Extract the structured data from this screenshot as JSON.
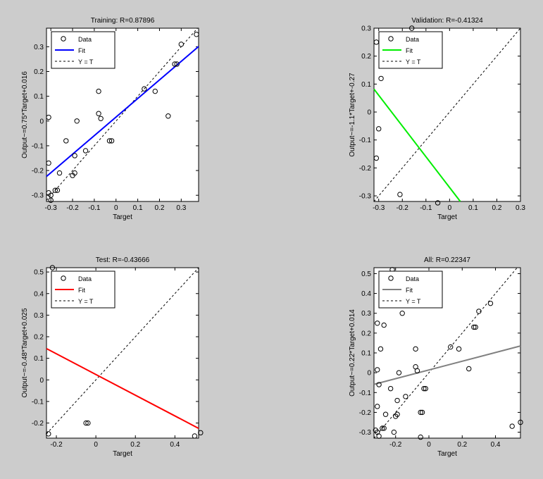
{
  "chart_data": [
    {
      "type": "scatter",
      "title": "Training: R=0.87896",
      "xlabel": "Target",
      "ylabel": "Output~=0.75*Target+0.016",
      "xlim": [
        -0.32,
        0.38
      ],
      "ylim": [
        -0.325,
        0.375
      ],
      "xticks": [
        -0.3,
        -0.2,
        -0.1,
        0,
        0.1,
        0.2,
        0.3
      ],
      "xtick_labels": [
        "-0.3",
        "-0.2",
        "-0.1",
        "0",
        "0.1",
        "0.2",
        "0.3"
      ],
      "yticks": [
        -0.3,
        -0.2,
        -0.1,
        0,
        0.1,
        0.2,
        0.3
      ],
      "ytick_labels": [
        "-0.3",
        "-0.2",
        "-0.1",
        "0",
        "0.1",
        "0.2",
        "0.3"
      ],
      "fit": {
        "slope": 0.75,
        "intercept": 0.016,
        "color": "#0000ff"
      },
      "legend": {
        "position": "top-left",
        "entries": [
          "Data",
          "Fit",
          "Y = T"
        ]
      },
      "points": [
        [
          -0.31,
          -0.29
        ],
        [
          -0.3,
          -0.3
        ],
        [
          -0.3,
          -0.32
        ],
        [
          -0.28,
          -0.28
        ],
        [
          -0.27,
          -0.28
        ],
        [
          -0.26,
          -0.21
        ],
        [
          -0.31,
          -0.17
        ],
        [
          -0.31,
          0.015
        ],
        [
          -0.23,
          -0.08
        ],
        [
          -0.2,
          -0.22
        ],
        [
          -0.19,
          -0.21
        ],
        [
          -0.19,
          -0.14
        ],
        [
          -0.18,
          0.0
        ],
        [
          -0.14,
          -0.12
        ],
        [
          -0.08,
          0.12
        ],
        [
          -0.08,
          0.03
        ],
        [
          -0.07,
          0.01
        ],
        [
          -0.03,
          -0.08
        ],
        [
          -0.02,
          -0.08
        ],
        [
          0.13,
          0.13
        ],
        [
          0.18,
          0.12
        ],
        [
          0.24,
          0.02
        ],
        [
          0.27,
          0.23
        ],
        [
          0.28,
          0.23
        ],
        [
          0.3,
          0.31
        ],
        [
          0.37,
          0.35
        ]
      ]
    },
    {
      "type": "scatter",
      "title": "Validation: R=-0.41324",
      "xlabel": "Target",
      "ylabel": "Output~=-1.1*Target+-0.27",
      "xlim": [
        -0.32,
        0.3
      ],
      "ylim": [
        -0.32,
        0.3
      ],
      "xticks": [
        -0.3,
        -0.2,
        -0.1,
        0,
        0.1,
        0.2,
        0.3
      ],
      "xtick_labels": [
        "-0.3",
        "-0.2",
        "-0.1",
        "0",
        "0.1",
        "0.2",
        "0.3"
      ],
      "yticks": [
        -0.3,
        -0.2,
        -0.1,
        0,
        0.1,
        0.2,
        0.3
      ],
      "ytick_labels": [
        "-0.3",
        "-0.2",
        "-0.1",
        "0",
        "0.1",
        "0.2",
        "0.3"
      ],
      "fit": {
        "slope": -1.1,
        "intercept": -0.27,
        "color": "#00ee00"
      },
      "legend": {
        "position": "top-left",
        "entries": [
          "Data",
          "Fit",
          "Y = T"
        ]
      },
      "points": [
        [
          -0.31,
          0.25
        ],
        [
          -0.3,
          -0.06
        ],
        [
          -0.31,
          -0.165
        ],
        [
          -0.29,
          0.12
        ],
        [
          -0.21,
          -0.295
        ],
        [
          -0.16,
          0.3
        ],
        [
          -0.05,
          -0.325
        ]
      ]
    },
    {
      "type": "scatter",
      "title": "Test: R=-0.43666",
      "xlabel": "Target",
      "ylabel": "Output~=-0.48*Target+0.025",
      "xlim": [
        -0.25,
        0.52
      ],
      "ylim": [
        -0.27,
        0.52
      ],
      "xticks": [
        -0.2,
        0,
        0.2,
        0.4
      ],
      "xtick_labels": [
        "-0.2",
        "0",
        "0.2",
        "0.4"
      ],
      "yticks": [
        -0.2,
        -0.1,
        0,
        0.1,
        0.2,
        0.3,
        0.4,
        0.5
      ],
      "ytick_labels": [
        "-0.2",
        "-0.1",
        "0",
        "0.1",
        "0.2",
        "0.3",
        "0.4",
        "0.5"
      ],
      "fit": {
        "slope": -0.48,
        "intercept": 0.025,
        "color": "#ff0000"
      },
      "legend": {
        "position": "top-left",
        "entries": [
          "Data",
          "Fit",
          "Y = T"
        ]
      },
      "points": [
        [
          -0.24,
          -0.25
        ],
        [
          -0.22,
          0.52
        ],
        [
          -0.05,
          -0.2
        ],
        [
          -0.04,
          -0.2
        ],
        [
          0.5,
          -0.26
        ],
        [
          0.53,
          -0.245
        ]
      ]
    },
    {
      "type": "scatter",
      "title": "All: R=0.22347",
      "xlabel": "Target",
      "ylabel": "Output~=0.22*Target+0.014",
      "xlim": [
        -0.33,
        0.55
      ],
      "ylim": [
        -0.33,
        0.53
      ],
      "xticks": [
        -0.2,
        0,
        0.2,
        0.4
      ],
      "xtick_labels": [
        "-0.2",
        "0",
        "0.2",
        "0.4"
      ],
      "yticks": [
        -0.3,
        -0.2,
        -0.1,
        0,
        0.1,
        0.2,
        0.3,
        0.4,
        0.5
      ],
      "ytick_labels": [
        "-0.3",
        "-0.2",
        "-0.1",
        "0",
        "0.1",
        "0.2",
        "0.3",
        "0.4",
        "0.5"
      ],
      "fit": {
        "slope": 0.22,
        "intercept": 0.014,
        "color": "#808080"
      },
      "legend": {
        "position": "top-left",
        "entries": [
          "Data",
          "Fit",
          "Y = T"
        ]
      },
      "points": [
        [
          -0.32,
          -0.29
        ],
        [
          -0.31,
          -0.3
        ],
        [
          -0.3,
          -0.32
        ],
        [
          -0.28,
          -0.28
        ],
        [
          -0.27,
          -0.28
        ],
        [
          -0.26,
          -0.21
        ],
        [
          -0.31,
          -0.17
        ],
        [
          -0.31,
          0.015
        ],
        [
          -0.23,
          -0.08
        ],
        [
          -0.2,
          -0.22
        ],
        [
          -0.19,
          -0.21
        ],
        [
          -0.19,
          -0.14
        ],
        [
          -0.18,
          0.0
        ],
        [
          -0.14,
          -0.12
        ],
        [
          -0.08,
          0.12
        ],
        [
          -0.08,
          0.03
        ],
        [
          -0.07,
          0.01
        ],
        [
          -0.03,
          -0.08
        ],
        [
          -0.02,
          -0.08
        ],
        [
          0.13,
          0.13
        ],
        [
          0.18,
          0.12
        ],
        [
          0.24,
          0.02
        ],
        [
          0.27,
          0.23
        ],
        [
          0.28,
          0.23
        ],
        [
          0.3,
          0.31
        ],
        [
          0.37,
          0.35
        ],
        [
          -0.31,
          0.25
        ],
        [
          -0.3,
          -0.06
        ],
        [
          -0.29,
          0.12
        ],
        [
          -0.27,
          0.24
        ],
        [
          -0.21,
          -0.3
        ],
        [
          -0.16,
          0.3
        ],
        [
          -0.05,
          -0.325
        ],
        [
          -0.22,
          0.52
        ],
        [
          -0.05,
          -0.2
        ],
        [
          -0.04,
          -0.2
        ],
        [
          0.5,
          -0.27
        ],
        [
          0.55,
          -0.25
        ]
      ]
    }
  ]
}
